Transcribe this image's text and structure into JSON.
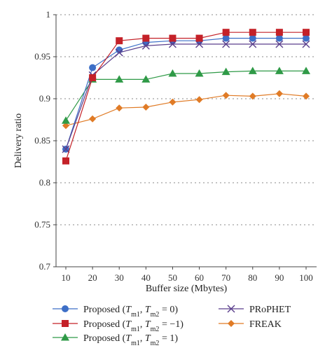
{
  "chart_data": {
    "type": "line",
    "xlabel": "Buffer size (Mbytes)",
    "ylabel": "Delivery ratio",
    "x": [
      10,
      20,
      30,
      40,
      50,
      60,
      70,
      80,
      90,
      100
    ],
    "xticks": [
      "10",
      "20",
      "30",
      "40",
      "50",
      "60",
      "70",
      "80",
      "90",
      "100"
    ],
    "ylim": [
      0.7,
      1.0
    ],
    "yticks": [
      "0.7",
      "0.75",
      "0.8",
      "0.85",
      "0.9",
      "0.95",
      "1"
    ],
    "grid": "horizontal dotted",
    "legend_position": "bottom, two columns",
    "series": [
      {
        "name": "Proposed (Tm1, Tm2 = 0)",
        "color": "#3d6fc7",
        "marker": "circle",
        "legend": {
          "base": "Proposed (",
          "t1": "T",
          "s1": "m1",
          "sep": ", ",
          "t2": "T",
          "s2": "m2",
          "tail": " = 0)"
        },
        "values": [
          0.84,
          0.937,
          0.958,
          0.967,
          0.969,
          0.969,
          0.972,
          0.972,
          0.972,
          0.972
        ]
      },
      {
        "name": "Proposed (Tm1, Tm2 = −1)",
        "color": "#c42128",
        "marker": "square",
        "legend": {
          "base": "Proposed (",
          "t1": "T",
          "s1": "m1",
          "sep": ", ",
          "t2": "T",
          "s2": "m2",
          "tail": " = −1)"
        },
        "values": [
          0.826,
          0.925,
          0.969,
          0.972,
          0.972,
          0.972,
          0.979,
          0.979,
          0.979,
          0.979
        ]
      },
      {
        "name": "Proposed (Tm1, Tm2 = 1)",
        "color": "#2f9a47",
        "marker": "triangle",
        "legend": {
          "base": "Proposed (",
          "t1": "T",
          "s1": "m1",
          "sep": ", ",
          "t2": "T",
          "s2": "m2",
          "tail": " = 1)"
        },
        "values": [
          0.874,
          0.923,
          0.923,
          0.923,
          0.93,
          0.93,
          0.932,
          0.933,
          0.933,
          0.933
        ]
      },
      {
        "name": "PRoPHET",
        "color": "#5b3f8c",
        "marker": "x",
        "legend": {
          "base": "PRoPHET"
        },
        "values": [
          0.84,
          0.928,
          0.955,
          0.963,
          0.965,
          0.965,
          0.965,
          0.965,
          0.965,
          0.965
        ]
      },
      {
        "name": "FREAK",
        "color": "#e07b26",
        "marker": "diamond",
        "legend": {
          "base": "FREAK"
        },
        "values": [
          0.868,
          0.876,
          0.889,
          0.89,
          0.896,
          0.899,
          0.904,
          0.903,
          0.906,
          0.903
        ]
      }
    ]
  }
}
